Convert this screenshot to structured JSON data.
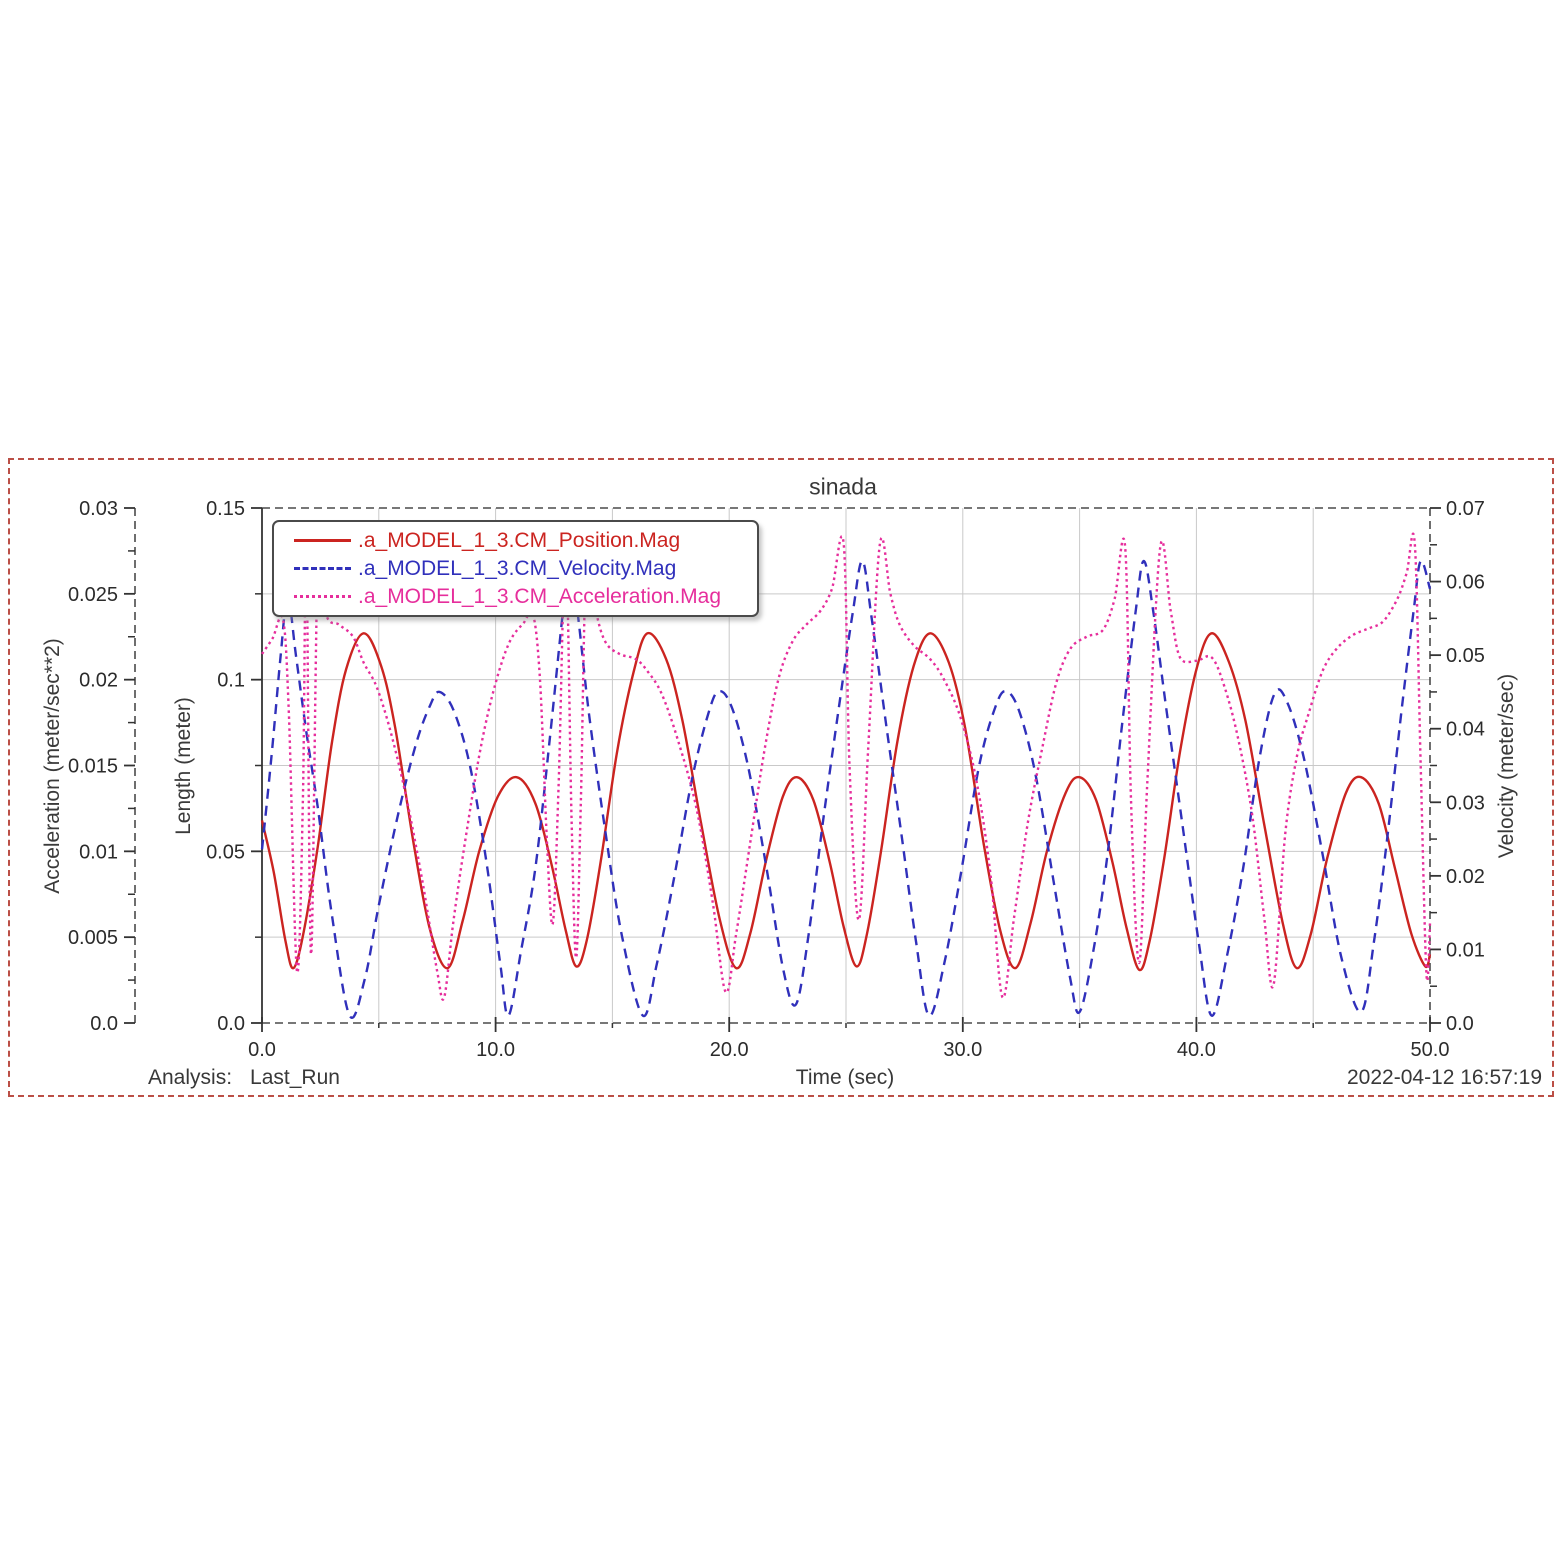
{
  "window": {
    "background_color": "#ffffff",
    "border_color": "#bb4f46"
  },
  "title": "sinada",
  "footer": {
    "analysis_label": "Analysis:",
    "analysis_value": "Last_Run",
    "timestamp": "2022-04-12 16:57:19"
  },
  "chart_data": {
    "type": "line",
    "title": "sinada",
    "xlabel": "Time (sec)",
    "x_range": [
      0,
      50
    ],
    "x_tick_labels": [
      "0.0",
      "10.0",
      "20.0",
      "30.0",
      "40.0",
      "50.0"
    ],
    "x_minor_step": 5,
    "grid": true,
    "grid_color": "#c9c9c9",
    "frame_color": "#4a4a4a",
    "text_color": "#2b2b2b",
    "legend_position": "top-left",
    "axes": [
      {
        "id": "acceleration",
        "label": "Acceleration (meter/sec**2)",
        "side": "left",
        "line": "dashed",
        "max": 0.03,
        "tick_labels": [
          "0.03",
          "0.025",
          "0.02",
          "0.015",
          "0.01",
          "0.005",
          "0.0"
        ]
      },
      {
        "id": "length",
        "label": "Length (meter)",
        "side": "left",
        "line": "solid",
        "max": 0.15,
        "tick_labels": [
          "0.15",
          "0.1",
          "0.05",
          "0.0"
        ]
      },
      {
        "id": "velocity",
        "label": "Velocity (meter/sec)",
        "side": "right",
        "line": "dashed",
        "max": 0.07,
        "tick_labels": [
          "0.07",
          "0.06",
          "0.05",
          "0.04",
          "0.03",
          "0.02",
          "0.01",
          "0.0"
        ]
      }
    ],
    "series": [
      {
        "name": ".a_MODEL_1_3.CM_Position.Mag",
        "axis": "length",
        "color": "#cb2420",
        "style": "solid",
        "points": [
          [
            0,
            0.059
          ],
          [
            0.5,
            0.044
          ],
          [
            1.0,
            0.024
          ],
          [
            1.35,
            0.016
          ],
          [
            1.8,
            0.027
          ],
          [
            2.4,
            0.052
          ],
          [
            3.0,
            0.082
          ],
          [
            3.6,
            0.103
          ],
          [
            4.35,
            0.1135
          ],
          [
            5.1,
            0.104
          ],
          [
            5.7,
            0.086
          ],
          [
            6.5,
            0.052
          ],
          [
            7.2,
            0.027
          ],
          [
            7.95,
            0.016
          ],
          [
            8.6,
            0.03
          ],
          [
            9.3,
            0.05
          ],
          [
            10.1,
            0.066
          ],
          [
            10.9,
            0.0716
          ],
          [
            11.7,
            0.064
          ],
          [
            12.4,
            0.046
          ],
          [
            13.0,
            0.027
          ],
          [
            13.45,
            0.0165
          ],
          [
            13.9,
            0.024
          ],
          [
            14.5,
            0.047
          ],
          [
            15.2,
            0.079
          ],
          [
            15.9,
            0.102
          ],
          [
            16.5,
            0.1135
          ],
          [
            17.3,
            0.106
          ],
          [
            18.0,
            0.088
          ],
          [
            18.8,
            0.058
          ],
          [
            19.6,
            0.03
          ],
          [
            20.3,
            0.016
          ],
          [
            20.9,
            0.026
          ],
          [
            21.6,
            0.048
          ],
          [
            22.3,
            0.066
          ],
          [
            22.9,
            0.0716
          ],
          [
            23.6,
            0.065
          ],
          [
            24.3,
            0.047
          ],
          [
            24.9,
            0.028
          ],
          [
            25.45,
            0.0165
          ],
          [
            25.9,
            0.026
          ],
          [
            26.5,
            0.05
          ],
          [
            27.2,
            0.082
          ],
          [
            27.9,
            0.104
          ],
          [
            28.6,
            0.1135
          ],
          [
            29.4,
            0.105
          ],
          [
            30.1,
            0.086
          ],
          [
            30.9,
            0.052
          ],
          [
            31.6,
            0.027
          ],
          [
            32.25,
            0.016
          ],
          [
            32.9,
            0.029
          ],
          [
            33.6,
            0.05
          ],
          [
            34.4,
            0.067
          ],
          [
            35.0,
            0.0716
          ],
          [
            35.7,
            0.065
          ],
          [
            36.4,
            0.047
          ],
          [
            37.0,
            0.028
          ],
          [
            37.55,
            0.0155
          ],
          [
            38.0,
            0.024
          ],
          [
            38.6,
            0.047
          ],
          [
            39.3,
            0.079
          ],
          [
            40.0,
            0.103
          ],
          [
            40.65,
            0.1135
          ],
          [
            41.4,
            0.105
          ],
          [
            42.1,
            0.088
          ],
          [
            42.9,
            0.058
          ],
          [
            43.7,
            0.029
          ],
          [
            44.3,
            0.016
          ],
          [
            44.9,
            0.026
          ],
          [
            45.6,
            0.048
          ],
          [
            46.4,
            0.067
          ],
          [
            47.05,
            0.0716
          ],
          [
            47.8,
            0.064
          ],
          [
            48.5,
            0.045
          ],
          [
            49.2,
            0.026
          ],
          [
            49.8,
            0.0165
          ],
          [
            50,
            0.02
          ]
        ]
      },
      {
        "name": ".a_MODEL_1_3.CM_Velocity.Mag",
        "axis": "velocity",
        "color": "#3030bb",
        "style": "dashed",
        "points": [
          [
            0,
            0.0236
          ],
          [
            0.4,
            0.036
          ],
          [
            0.8,
            0.05
          ],
          [
            1.1,
            0.058
          ],
          [
            1.45,
            0.05
          ],
          [
            1.9,
            0.0395
          ],
          [
            2.4,
            0.029
          ],
          [
            3.0,
            0.0145
          ],
          [
            3.75,
            0.001
          ],
          [
            4.4,
            0.006
          ],
          [
            5.0,
            0.016
          ],
          [
            5.8,
            0.028
          ],
          [
            6.6,
            0.038
          ],
          [
            7.2,
            0.0432
          ],
          [
            7.6,
            0.045
          ],
          [
            8.2,
            0.0425
          ],
          [
            8.9,
            0.035
          ],
          [
            9.6,
            0.022
          ],
          [
            10.2,
            0.008
          ],
          [
            10.55,
            0.001
          ],
          [
            11.1,
            0.01
          ],
          [
            11.7,
            0.021
          ],
          [
            12.3,
            0.038
          ],
          [
            12.85,
            0.055
          ],
          [
            13.15,
            0.0628
          ],
          [
            13.5,
            0.056
          ],
          [
            14.0,
            0.042
          ],
          [
            14.7,
            0.026
          ],
          [
            15.4,
            0.012
          ],
          [
            16.3,
            0.001
          ],
          [
            16.9,
            0.008
          ],
          [
            17.6,
            0.019
          ],
          [
            18.4,
            0.033
          ],
          [
            19.1,
            0.042
          ],
          [
            19.55,
            0.0451
          ],
          [
            20.1,
            0.043
          ],
          [
            20.8,
            0.035
          ],
          [
            21.6,
            0.021
          ],
          [
            22.3,
            0.0075
          ],
          [
            22.85,
            0.0025
          ],
          [
            23.4,
            0.012
          ],
          [
            24.0,
            0.027
          ],
          [
            24.7,
            0.043
          ],
          [
            25.3,
            0.056
          ],
          [
            25.7,
            0.0628
          ],
          [
            26.1,
            0.055
          ],
          [
            26.7,
            0.041
          ],
          [
            27.4,
            0.025
          ],
          [
            28.0,
            0.011
          ],
          [
            28.55,
            0.001
          ],
          [
            29.2,
            0.008
          ],
          [
            29.9,
            0.02
          ],
          [
            30.7,
            0.035
          ],
          [
            31.4,
            0.043
          ],
          [
            31.85,
            0.0451
          ],
          [
            32.4,
            0.0425
          ],
          [
            33.1,
            0.034
          ],
          [
            33.9,
            0.019
          ],
          [
            34.6,
            0.006
          ],
          [
            35.0,
            0.0015
          ],
          [
            35.6,
            0.01
          ],
          [
            36.2,
            0.023
          ],
          [
            36.8,
            0.04
          ],
          [
            37.4,
            0.056
          ],
          [
            37.75,
            0.0628
          ],
          [
            38.15,
            0.056
          ],
          [
            38.7,
            0.043
          ],
          [
            39.4,
            0.027
          ],
          [
            40.1,
            0.011
          ],
          [
            40.65,
            0.001
          ],
          [
            41.3,
            0.009
          ],
          [
            42.0,
            0.021
          ],
          [
            42.7,
            0.036
          ],
          [
            43.35,
            0.0448
          ],
          [
            43.9,
            0.0435
          ],
          [
            44.6,
            0.036
          ],
          [
            45.4,
            0.023
          ],
          [
            46.2,
            0.009
          ],
          [
            47.05,
            0.0015
          ],
          [
            47.6,
            0.011
          ],
          [
            48.2,
            0.026
          ],
          [
            48.8,
            0.043
          ],
          [
            49.3,
            0.056
          ],
          [
            49.6,
            0.0628
          ],
          [
            50,
            0.059
          ]
        ]
      },
      {
        "name": ".a_MODEL_1_3.CM_Acceleration.Mag",
        "axis": "acceleration",
        "color": "#e62e9c",
        "style": "dotted",
        "points": [
          [
            0,
            0.0215
          ],
          [
            0.45,
            0.0224
          ],
          [
            0.9,
            0.0235
          ],
          [
            1.15,
            0.018
          ],
          [
            1.5,
            0.003
          ],
          [
            1.75,
            0.013
          ],
          [
            1.9,
            0.0276
          ],
          [
            2.1,
            0.004
          ],
          [
            2.4,
            0.0276
          ],
          [
            2.75,
            0.0238
          ],
          [
            3.3,
            0.0232
          ],
          [
            3.9,
            0.0225
          ],
          [
            4.35,
            0.021
          ],
          [
            4.9,
            0.0196
          ],
          [
            5.5,
            0.017
          ],
          [
            6.2,
            0.013
          ],
          [
            6.9,
            0.008
          ],
          [
            7.5,
            0.003
          ],
          [
            7.8,
            0.0015
          ],
          [
            8.2,
            0.006
          ],
          [
            8.8,
            0.0115
          ],
          [
            9.4,
            0.0163
          ],
          [
            10.0,
            0.0198
          ],
          [
            10.6,
            0.0222
          ],
          [
            11.2,
            0.0233
          ],
          [
            11.6,
            0.0238
          ],
          [
            11.9,
            0.02
          ],
          [
            12.2,
            0.0105
          ],
          [
            12.45,
            0.0058
          ],
          [
            12.7,
            0.014
          ],
          [
            13.0,
            0.0276
          ],
          [
            13.25,
            0.012
          ],
          [
            13.45,
            0.0038
          ],
          [
            13.65,
            0.013
          ],
          [
            13.9,
            0.0276
          ],
          [
            14.3,
            0.024
          ],
          [
            14.7,
            0.0222
          ],
          [
            15.3,
            0.0215
          ],
          [
            16.0,
            0.0212
          ],
          [
            16.5,
            0.0205
          ],
          [
            17.1,
            0.0192
          ],
          [
            17.8,
            0.0165
          ],
          [
            18.6,
            0.0125
          ],
          [
            19.3,
            0.007
          ],
          [
            19.85,
            0.0018
          ],
          [
            20.3,
            0.0052
          ],
          [
            20.9,
            0.0105
          ],
          [
            21.5,
            0.0158
          ],
          [
            22.1,
            0.02
          ],
          [
            22.7,
            0.0222
          ],
          [
            23.3,
            0.0232
          ],
          [
            23.9,
            0.024
          ],
          [
            24.4,
            0.0253
          ],
          [
            24.9,
            0.0279
          ],
          [
            25.15,
            0.015
          ],
          [
            25.55,
            0.006
          ],
          [
            25.95,
            0.016
          ],
          [
            26.45,
            0.0279
          ],
          [
            26.9,
            0.025
          ],
          [
            27.3,
            0.0232
          ],
          [
            27.9,
            0.022
          ],
          [
            28.6,
            0.0212
          ],
          [
            29.2,
            0.02
          ],
          [
            29.9,
            0.0178
          ],
          [
            30.6,
            0.014
          ],
          [
            31.2,
            0.0085
          ],
          [
            31.7,
            0.0015
          ],
          [
            32.2,
            0.0062
          ],
          [
            32.8,
            0.0118
          ],
          [
            33.4,
            0.016
          ],
          [
            34.0,
            0.0198
          ],
          [
            34.6,
            0.0218
          ],
          [
            35.3,
            0.0225
          ],
          [
            36.0,
            0.0229
          ],
          [
            36.5,
            0.0247
          ],
          [
            36.95,
            0.0277
          ],
          [
            37.2,
            0.013
          ],
          [
            37.55,
            0.0035
          ],
          [
            37.9,
            0.014
          ],
          [
            38.45,
            0.0277
          ],
          [
            38.9,
            0.024
          ],
          [
            39.3,
            0.0213
          ],
          [
            40.0,
            0.0211
          ],
          [
            40.65,
            0.0213
          ],
          [
            41.2,
            0.0196
          ],
          [
            41.8,
            0.0165
          ],
          [
            42.4,
            0.012
          ],
          [
            42.9,
            0.0062
          ],
          [
            43.3,
            0.0022
          ],
          [
            43.8,
            0.011
          ],
          [
            44.3,
            0.0155
          ],
          [
            44.8,
            0.018
          ],
          [
            45.4,
            0.0205
          ],
          [
            46.0,
            0.0218
          ],
          [
            46.7,
            0.0226
          ],
          [
            47.4,
            0.023
          ],
          [
            48.0,
            0.0234
          ],
          [
            48.6,
            0.0247
          ],
          [
            49.0,
            0.0262
          ],
          [
            49.35,
            0.0279
          ],
          [
            49.6,
            0.015
          ],
          [
            49.85,
            0.0028
          ],
          [
            50,
            0.0058
          ]
        ]
      }
    ]
  }
}
